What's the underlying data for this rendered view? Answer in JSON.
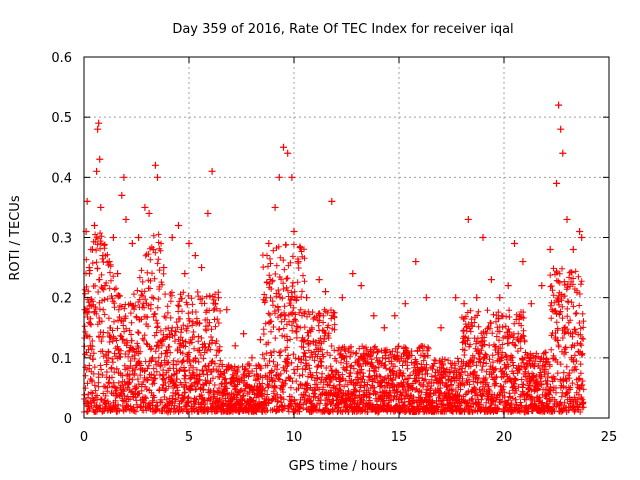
{
  "chart_data": {
    "type": "scatter",
    "title": "Day 359 of 2016, Rate Of TEC Index for receiver iqal",
    "xlabel": "GPS time / hours",
    "ylabel": "ROTI / TECUs",
    "xlim": [
      0,
      25
    ],
    "ylim": [
      0,
      0.6
    ],
    "x_ticks": [
      "0",
      "5",
      "10",
      "15",
      "20",
      "25"
    ],
    "y_ticks": [
      "0",
      "0.1",
      "0.2",
      "0.3",
      "0.4",
      "0.5",
      "0.6"
    ],
    "grid": true,
    "marker": "+",
    "color": "#ff0000",
    "series": [
      {
        "values": [
          [
            0.05,
            0.18
          ],
          [
            0.1,
            0.31
          ],
          [
            0.15,
            0.36
          ],
          [
            0.2,
            0.02
          ],
          [
            0.25,
            0.25
          ],
          [
            0.3,
            0.12
          ],
          [
            0.4,
            0.28
          ],
          [
            0.5,
            0.32
          ],
          [
            0.6,
            0.41
          ],
          [
            0.65,
            0.48
          ],
          [
            0.7,
            0.49
          ],
          [
            0.75,
            0.43
          ],
          [
            0.8,
            0.35
          ],
          [
            0.9,
            0.27
          ],
          [
            1.0,
            0.22
          ],
          [
            1.2,
            0.26
          ],
          [
            1.4,
            0.3
          ],
          [
            1.6,
            0.24
          ],
          [
            1.8,
            0.37
          ],
          [
            1.9,
            0.4
          ],
          [
            2.0,
            0.33
          ],
          [
            2.3,
            0.29
          ],
          [
            2.6,
            0.3
          ],
          [
            2.9,
            0.35
          ],
          [
            3.1,
            0.34
          ],
          [
            3.3,
            0.28
          ],
          [
            3.4,
            0.42
          ],
          [
            3.5,
            0.4
          ],
          [
            3.8,
            0.25
          ],
          [
            4.2,
            0.3
          ],
          [
            4.5,
            0.32
          ],
          [
            4.8,
            0.24
          ],
          [
            5.0,
            0.29
          ],
          [
            5.3,
            0.27
          ],
          [
            5.6,
            0.25
          ],
          [
            5.9,
            0.34
          ],
          [
            6.1,
            0.41
          ],
          [
            6.4,
            0.2
          ],
          [
            6.8,
            0.18
          ],
          [
            7.2,
            0.12
          ],
          [
            7.6,
            0.14
          ],
          [
            8.0,
            0.1
          ],
          [
            8.4,
            0.13
          ],
          [
            8.8,
            0.29
          ],
          [
            9.1,
            0.35
          ],
          [
            9.3,
            0.4
          ],
          [
            9.5,
            0.45
          ],
          [
            9.7,
            0.44
          ],
          [
            9.9,
            0.4
          ],
          [
            10.0,
            0.31
          ],
          [
            10.2,
            0.26
          ],
          [
            10.6,
            0.2
          ],
          [
            11.2,
            0.23
          ],
          [
            11.5,
            0.21
          ],
          [
            11.8,
            0.36
          ],
          [
            12.3,
            0.2
          ],
          [
            12.8,
            0.24
          ],
          [
            13.2,
            0.22
          ],
          [
            13.8,
            0.17
          ],
          [
            14.3,
            0.15
          ],
          [
            14.8,
            0.17
          ],
          [
            15.3,
            0.19
          ],
          [
            15.8,
            0.26
          ],
          [
            16.3,
            0.2
          ],
          [
            17.0,
            0.15
          ],
          [
            17.7,
            0.2
          ],
          [
            18.1,
            0.19
          ],
          [
            18.3,
            0.33
          ],
          [
            18.7,
            0.2
          ],
          [
            19.0,
            0.3
          ],
          [
            19.4,
            0.23
          ],
          [
            19.8,
            0.2
          ],
          [
            20.2,
            0.22
          ],
          [
            20.5,
            0.29
          ],
          [
            20.9,
            0.26
          ],
          [
            21.3,
            0.19
          ],
          [
            21.8,
            0.22
          ],
          [
            22.2,
            0.28
          ],
          [
            22.5,
            0.39
          ],
          [
            22.6,
            0.52
          ],
          [
            22.7,
            0.48
          ],
          [
            22.8,
            0.44
          ],
          [
            23.0,
            0.33
          ],
          [
            23.3,
            0.28
          ],
          [
            23.6,
            0.31
          ],
          [
            23.7,
            0.3
          ],
          [
            1.5,
            0.02
          ],
          [
            4.0,
            0.01
          ],
          [
            7.0,
            0.02
          ],
          [
            10.5,
            0.03
          ],
          [
            14.0,
            0.01
          ],
          [
            17.5,
            0.02
          ],
          [
            21.0,
            0.01
          ],
          [
            23.5,
            0.02
          ]
        ]
      }
    ]
  }
}
